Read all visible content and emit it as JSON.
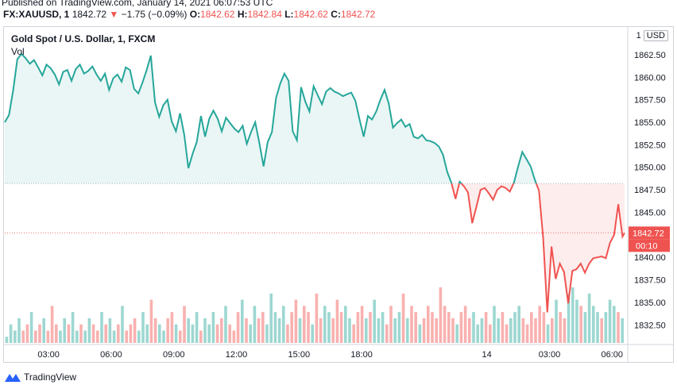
{
  "header": {
    "published": "Published on TradingView.com, January 14, 2021 06:07:53 UTC",
    "symbol": "FX:XAUUSD, 1",
    "last": "1842.72",
    "arrow": "▼",
    "change": "−1.75 (−0.09%)",
    "o_label": "O:",
    "o_value": "1842.62",
    "h_label": "H:",
    "h_value": "1842.84",
    "l_label": "L:",
    "l_value": "1842.62",
    "c_label": "C:",
    "c_value": "1842.72"
  },
  "chart": {
    "title": "Gold Spot / U.S. Dollar, 1, FXCM",
    "volume_label": "Vol",
    "currency_prefix": "1",
    "currency": "USD",
    "price_label": "1842.72",
    "countdown": "00:10"
  },
  "footer": {
    "brand": "TradingView"
  },
  "colors": {
    "up": "#26a69a",
    "down": "#ef5350",
    "grid": "#e0e3eb",
    "text": "#131722"
  },
  "chart_data": {
    "type": "area",
    "title": "Gold Spot / U.S. Dollar, 1, FXCM",
    "ylim": [
      1830.5,
      1865.4
    ],
    "yticks": [
      1862.5,
      1860,
      1857.5,
      1855,
      1852.5,
      1850,
      1847.5,
      1845,
      1842.5,
      1840,
      1837.5,
      1835,
      1832.5
    ],
    "ytick_labels": [
      "1862.50",
      "1860.00",
      "1857.50",
      "1855.00",
      "1852.50",
      "1850.00",
      "1847.50",
      "1845.00",
      "1842.50",
      "1840.00",
      "1837.50",
      "1835.00",
      "1832.50"
    ],
    "xticks": [
      {
        "label": "03:00",
        "h": 3
      },
      {
        "label": "06:00",
        "h": 6
      },
      {
        "label": "09:00",
        "h": 9
      },
      {
        "label": "12:00",
        "h": 12
      },
      {
        "label": "15:00",
        "h": 15
      },
      {
        "label": "18:00",
        "h": 18
      },
      {
        "label": "14",
        "h": 24
      },
      {
        "label": "03:00",
        "h": 27
      },
      {
        "label": "06:00",
        "h": 30
      }
    ],
    "baseline": 1848.2,
    "last_price": 1842.72,
    "xrange_hours": [
      0.9,
      30.6
    ],
    "series": [
      {
        "name": "XAUUSD",
        "points": [
          [
            0.9,
            1855.0
          ],
          [
            1.1,
            1855.8
          ],
          [
            1.3,
            1858.5
          ],
          [
            1.5,
            1862.0
          ],
          [
            1.7,
            1862.6
          ],
          [
            1.9,
            1862.1
          ],
          [
            2.1,
            1861.5
          ],
          [
            2.3,
            1861.9
          ],
          [
            2.5,
            1861.1
          ],
          [
            2.7,
            1860.2
          ],
          [
            2.9,
            1861.4
          ],
          [
            3.1,
            1861.0
          ],
          [
            3.3,
            1860.3
          ],
          [
            3.5,
            1859.2
          ],
          [
            3.7,
            1860.6
          ],
          [
            3.9,
            1860.8
          ],
          [
            4.1,
            1859.6
          ],
          [
            4.3,
            1860.9
          ],
          [
            4.5,
            1861.4
          ],
          [
            4.7,
            1860.4
          ],
          [
            4.9,
            1860.7
          ],
          [
            5.1,
            1861.2
          ],
          [
            5.3,
            1860.3
          ],
          [
            5.5,
            1859.6
          ],
          [
            5.7,
            1860.4
          ],
          [
            5.9,
            1858.6
          ],
          [
            6.1,
            1859.9
          ],
          [
            6.3,
            1860.3
          ],
          [
            6.5,
            1859.5
          ],
          [
            6.7,
            1861.1
          ],
          [
            6.9,
            1860.8
          ],
          [
            7.1,
            1858.7
          ],
          [
            7.3,
            1858.2
          ],
          [
            7.5,
            1859.4
          ],
          [
            7.7,
            1860.8
          ],
          [
            7.9,
            1862.4
          ],
          [
            8.1,
            1857.2
          ],
          [
            8.3,
            1855.6
          ],
          [
            8.5,
            1856.9
          ],
          [
            8.7,
            1857.5
          ],
          [
            8.9,
            1855.1
          ],
          [
            9.1,
            1854.0
          ],
          [
            9.3,
            1856.0
          ],
          [
            9.5,
            1853.6
          ],
          [
            9.7,
            1849.9
          ],
          [
            9.9,
            1851.5
          ],
          [
            10.1,
            1852.8
          ],
          [
            10.3,
            1855.7
          ],
          [
            10.5,
            1853.4
          ],
          [
            10.7,
            1855.4
          ],
          [
            10.9,
            1856.3
          ],
          [
            11.1,
            1855.4
          ],
          [
            11.3,
            1854.0
          ],
          [
            11.5,
            1855.5
          ],
          [
            11.7,
            1854.9
          ],
          [
            11.9,
            1854.3
          ],
          [
            12.1,
            1853.9
          ],
          [
            12.3,
            1854.6
          ],
          [
            12.5,
            1852.6
          ],
          [
            12.7,
            1853.9
          ],
          [
            12.9,
            1855.0
          ],
          [
            13.1,
            1852.7
          ],
          [
            13.3,
            1850.1
          ],
          [
            13.5,
            1852.8
          ],
          [
            13.7,
            1853.9
          ],
          [
            13.9,
            1857.7
          ],
          [
            14.1,
            1859.3
          ],
          [
            14.3,
            1860.4
          ],
          [
            14.5,
            1859.6
          ],
          [
            14.7,
            1854.0
          ],
          [
            14.9,
            1853.0
          ],
          [
            15.1,
            1858.9
          ],
          [
            15.3,
            1857.3
          ],
          [
            15.5,
            1856.2
          ],
          [
            15.7,
            1859.0
          ],
          [
            15.9,
            1858.0
          ],
          [
            16.1,
            1857.0
          ],
          [
            16.3,
            1858.4
          ],
          [
            16.5,
            1858.8
          ],
          [
            16.7,
            1858.4
          ],
          [
            16.9,
            1858.2
          ],
          [
            17.1,
            1857.9
          ],
          [
            17.3,
            1858.1
          ],
          [
            17.5,
            1858.3
          ],
          [
            17.7,
            1857.4
          ],
          [
            17.9,
            1855.3
          ],
          [
            18.1,
            1853.4
          ],
          [
            18.3,
            1855.7
          ],
          [
            18.5,
            1855.3
          ],
          [
            18.7,
            1856.2
          ],
          [
            18.9,
            1857.5
          ],
          [
            19.1,
            1858.6
          ],
          [
            19.3,
            1857.1
          ],
          [
            19.5,
            1854.4
          ],
          [
            19.7,
            1854.9
          ],
          [
            19.9,
            1855.3
          ],
          [
            20.1,
            1854.5
          ],
          [
            20.3,
            1854.8
          ],
          [
            20.5,
            1853.4
          ],
          [
            20.7,
            1853.2
          ],
          [
            20.9,
            1853.6
          ],
          [
            21.1,
            1853.0
          ],
          [
            21.3,
            1852.9
          ],
          [
            21.5,
            1852.7
          ],
          [
            21.7,
            1852.3
          ],
          [
            21.9,
            1851.4
          ],
          [
            22.1,
            1849.5
          ],
          [
            22.3,
            1848.3
          ],
          [
            22.5,
            1846.5
          ],
          [
            22.7,
            1848.4
          ],
          [
            22.9,
            1847.9
          ],
          [
            23.1,
            1847.2
          ],
          [
            23.3,
            1843.8
          ],
          [
            23.5,
            1845.6
          ],
          [
            23.7,
            1847.5
          ],
          [
            23.9,
            1847.7
          ],
          [
            24.1,
            1847.1
          ],
          [
            24.3,
            1846.4
          ],
          [
            24.5,
            1847.5
          ],
          [
            24.7,
            1847.9
          ],
          [
            24.9,
            1847.7
          ],
          [
            25.1,
            1847.3
          ],
          [
            25.3,
            1848.3
          ],
          [
            25.5,
            1850.1
          ],
          [
            25.7,
            1851.7
          ],
          [
            25.9,
            1850.9
          ],
          [
            26.1,
            1850.1
          ],
          [
            26.3,
            1848.6
          ],
          [
            26.5,
            1847.4
          ],
          [
            26.7,
            1842.1
          ],
          [
            26.9,
            1833.9
          ],
          [
            27.1,
            1841.2
          ],
          [
            27.3,
            1837.6
          ],
          [
            27.5,
            1839.3
          ],
          [
            27.7,
            1838.4
          ],
          [
            27.9,
            1834.9
          ],
          [
            28.1,
            1838.5
          ],
          [
            28.3,
            1838.7
          ],
          [
            28.5,
            1839.3
          ],
          [
            28.7,
            1838.3
          ],
          [
            28.9,
            1839.3
          ],
          [
            29.1,
            1839.9
          ],
          [
            29.3,
            1840.0
          ],
          [
            29.5,
            1840.1
          ],
          [
            29.7,
            1839.9
          ],
          [
            29.9,
            1841.6
          ],
          [
            30.1,
            1842.5
          ],
          [
            30.3,
            1845.9
          ],
          [
            30.5,
            1842.3
          ],
          [
            30.6,
            1842.72
          ]
        ]
      }
    ],
    "volume": {
      "series": [
        {
          "name": "Vol",
          "values": [
            1,
            3,
            2,
            4,
            2,
            3,
            5,
            2,
            3,
            4,
            2,
            6,
            3,
            2,
            4,
            3,
            5,
            2,
            3,
            2,
            4,
            3,
            2,
            5,
            3,
            4,
            2,
            3,
            6,
            2,
            3,
            4,
            2,
            5,
            3,
            7,
            4,
            3,
            2,
            4,
            5,
            3,
            2,
            6,
            4,
            3,
            5,
            2,
            4,
            3,
            5,
            3,
            4,
            6,
            3,
            2,
            5,
            7,
            4,
            3,
            6,
            4,
            5,
            3,
            8,
            5,
            4,
            6,
            3,
            5,
            7,
            4,
            6,
            5,
            3,
            8,
            4,
            6,
            5,
            4,
            7,
            5,
            6,
            4,
            3,
            5,
            6,
            4,
            5,
            7,
            4,
            5,
            3,
            6,
            4,
            5,
            8,
            4,
            6,
            5,
            3,
            4,
            6,
            5,
            4,
            9,
            6,
            5,
            4,
            3,
            5,
            6,
            4,
            5,
            3,
            4,
            5,
            3,
            6,
            4,
            5,
            3,
            4,
            5,
            6,
            4,
            3,
            5,
            4,
            6,
            5,
            3,
            4,
            7,
            5,
            4,
            8,
            9,
            7,
            6,
            5,
            8,
            6,
            5,
            4,
            5,
            7,
            6,
            5,
            4
          ]
        }
      ]
    }
  }
}
